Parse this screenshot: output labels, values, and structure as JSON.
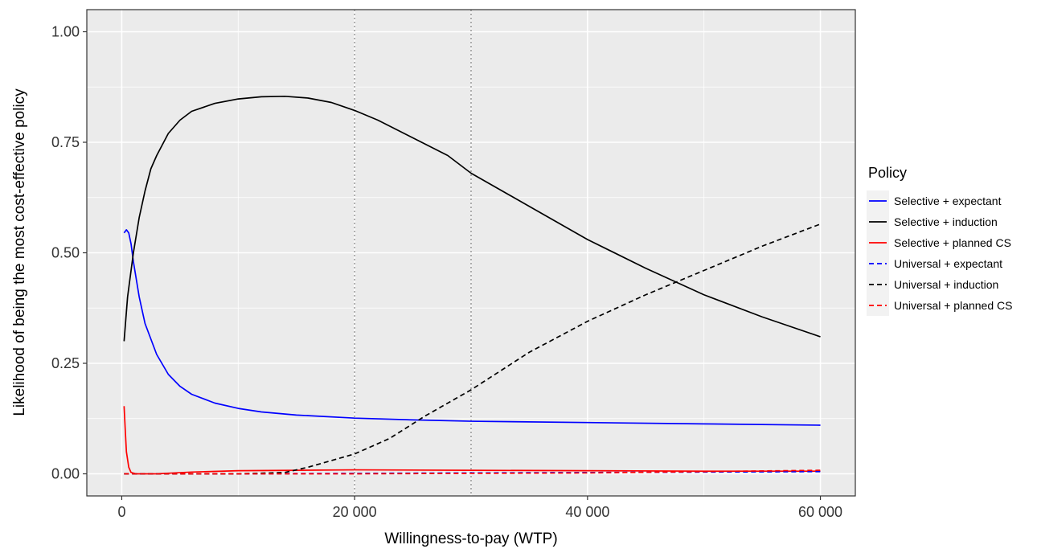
{
  "chart_data": {
    "type": "line",
    "xlabel": "Willingness-to-pay (WTP)",
    "ylabel": "Likelihood of being the most cost-effective policy",
    "xlim": [
      -3000,
      63000
    ],
    "ylim": [
      -0.05,
      1.05
    ],
    "x_ticks": [
      0,
      20000,
      40000,
      60000
    ],
    "x_tick_labels": [
      "0",
      "20 000",
      "40 000",
      "60 000"
    ],
    "y_ticks": [
      0,
      0.25,
      0.5,
      0.75,
      1.0
    ],
    "y_tick_labels": [
      "0.00",
      "0.25",
      "0.50",
      "0.75",
      "1.00"
    ],
    "reference_lines_x": [
      20000,
      30000
    ],
    "grid": true,
    "background": "#ebebeb",
    "legend": {
      "title": "Policy",
      "position": "right"
    },
    "series": [
      {
        "name": "Selective + expectant",
        "color": "#0000ff",
        "dash": "solid",
        "points": [
          [
            200,
            0.545
          ],
          [
            400,
            0.552
          ],
          [
            600,
            0.545
          ],
          [
            800,
            0.52
          ],
          [
            1000,
            0.48
          ],
          [
            1500,
            0.4
          ],
          [
            2000,
            0.34
          ],
          [
            3000,
            0.27
          ],
          [
            4000,
            0.225
          ],
          [
            5000,
            0.198
          ],
          [
            6000,
            0.18
          ],
          [
            8000,
            0.16
          ],
          [
            10000,
            0.148
          ],
          [
            12000,
            0.14
          ],
          [
            15000,
            0.133
          ],
          [
            20000,
            0.126
          ],
          [
            25000,
            0.122
          ],
          [
            30000,
            0.119
          ],
          [
            40000,
            0.116
          ],
          [
            50000,
            0.113
          ],
          [
            60000,
            0.11
          ]
        ]
      },
      {
        "name": "Selective + induction",
        "color": "#000000",
        "dash": "solid",
        "points": [
          [
            200,
            0.3
          ],
          [
            500,
            0.4
          ],
          [
            1000,
            0.5
          ],
          [
            1500,
            0.58
          ],
          [
            2000,
            0.64
          ],
          [
            2500,
            0.69
          ],
          [
            3000,
            0.72
          ],
          [
            4000,
            0.77
          ],
          [
            5000,
            0.8
          ],
          [
            6000,
            0.82
          ],
          [
            8000,
            0.838
          ],
          [
            10000,
            0.848
          ],
          [
            12000,
            0.853
          ],
          [
            14000,
            0.854
          ],
          [
            16000,
            0.85
          ],
          [
            18000,
            0.84
          ],
          [
            20000,
            0.822
          ],
          [
            22000,
            0.8
          ],
          [
            25000,
            0.76
          ],
          [
            28000,
            0.72
          ],
          [
            30000,
            0.68
          ],
          [
            35000,
            0.605
          ],
          [
            40000,
            0.53
          ],
          [
            45000,
            0.465
          ],
          [
            50000,
            0.405
          ],
          [
            55000,
            0.355
          ],
          [
            60000,
            0.31
          ]
        ]
      },
      {
        "name": "Selective + planned CS",
        "color": "#ff0000",
        "dash": "solid",
        "points": [
          [
            200,
            0.153
          ],
          [
            300,
            0.1
          ],
          [
            400,
            0.05
          ],
          [
            600,
            0.015
          ],
          [
            800,
            0.003
          ],
          [
            1200,
            0.0
          ],
          [
            3000,
            0.0
          ],
          [
            6000,
            0.004
          ],
          [
            10000,
            0.007
          ],
          [
            15000,
            0.008
          ],
          [
            20000,
            0.009
          ],
          [
            30000,
            0.008
          ],
          [
            40000,
            0.007
          ],
          [
            50000,
            0.006
          ],
          [
            60000,
            0.006
          ]
        ]
      },
      {
        "name": "Universal + expectant",
        "color": "#0000ff",
        "dash": "dashed",
        "points": [
          [
            200,
            0.0
          ],
          [
            10000,
            0.0
          ],
          [
            20000,
            0.001
          ],
          [
            30000,
            0.002
          ],
          [
            40000,
            0.003
          ],
          [
            50000,
            0.004
          ],
          [
            60000,
            0.005
          ]
        ]
      },
      {
        "name": "Universal + induction",
        "color": "#000000",
        "dash": "dashed",
        "points": [
          [
            200,
            0.0
          ],
          [
            10000,
            0.0
          ],
          [
            14000,
            0.003
          ],
          [
            16000,
            0.015
          ],
          [
            18000,
            0.03
          ],
          [
            20000,
            0.045
          ],
          [
            23000,
            0.08
          ],
          [
            26000,
            0.13
          ],
          [
            30000,
            0.19
          ],
          [
            35000,
            0.275
          ],
          [
            40000,
            0.345
          ],
          [
            45000,
            0.405
          ],
          [
            50000,
            0.46
          ],
          [
            55000,
            0.515
          ],
          [
            60000,
            0.565
          ]
        ]
      },
      {
        "name": "Universal + planned CS",
        "color": "#ff0000",
        "dash": "dashed",
        "points": [
          [
            200,
            0.0
          ],
          [
            20000,
            0.0
          ],
          [
            40000,
            0.002
          ],
          [
            50000,
            0.005
          ],
          [
            60000,
            0.008
          ]
        ]
      }
    ]
  }
}
